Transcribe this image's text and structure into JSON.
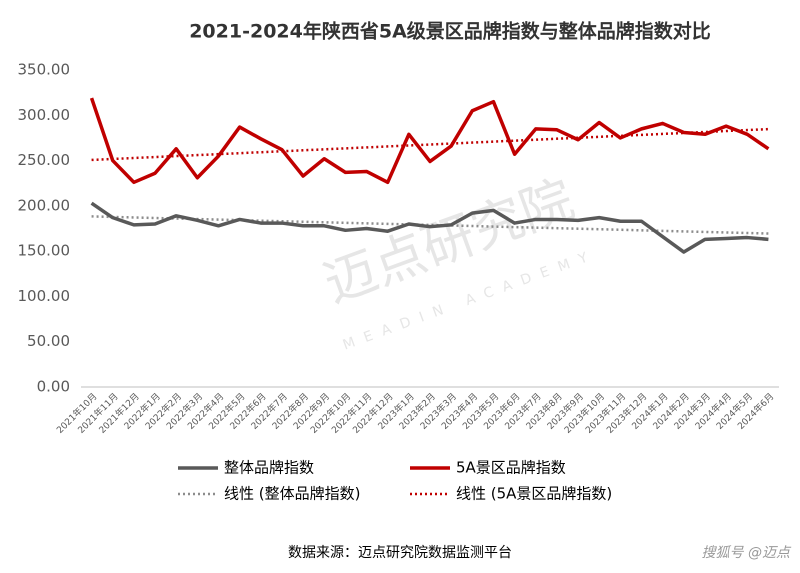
{
  "chart_data": {
    "type": "line",
    "title": "2021-2024年陕西省5A级景区品牌指数与整体品牌指数对比",
    "categories": [
      "2021年10月",
      "2021年11月",
      "2021年12月",
      "2022年1月",
      "2022年2月",
      "2022年3月",
      "2022年4月",
      "2022年5月",
      "2022年6月",
      "2022年7月",
      "2022年8月",
      "2022年9月",
      "2022年10月",
      "2022年11月",
      "2022年12月",
      "2023年1月",
      "2023年2月",
      "2023年3月",
      "2023年4月",
      "2023年5月",
      "2023年6月",
      "2023年7月",
      "2023年8月",
      "2023年9月",
      "2023年10月",
      "2023年11月",
      "2023年12月",
      "2024年1月",
      "2024年2月",
      "2024年3月",
      "2024年4月",
      "2024年5月",
      "2024年6月"
    ],
    "series": [
      {
        "name": "整体品牌指数",
        "color": "#595959",
        "values": [
          203,
          187,
          179,
          180,
          189,
          184,
          178,
          185,
          181,
          181,
          178,
          178,
          173,
          175,
          172,
          180,
          177,
          179,
          192,
          195,
          181,
          185,
          185,
          184,
          187,
          183,
          183,
          166,
          149,
          163,
          164,
          165,
          163
        ],
        "trendline": {
          "name": "线性 (整体品牌指数)",
          "color": "#8c8c8c"
        }
      },
      {
        "name": "5A景区品牌指数",
        "color": "#c00000",
        "values": [
          319,
          250,
          226,
          236,
          263,
          231,
          255,
          287,
          274,
          262,
          233,
          252,
          237,
          238,
          226,
          279,
          249,
          266,
          305,
          315,
          257,
          285,
          284,
          273,
          292,
          275,
          285,
          291,
          281,
          279,
          288,
          279,
          263
        ],
        "trendline": {
          "name": "线性 (5A景区品牌指数)",
          "color": "#c00000"
        }
      }
    ],
    "ylim": [
      0,
      350
    ],
    "yticks": [
      {
        "value": 0,
        "label": "0.00"
      },
      {
        "value": 50,
        "label": "50.00"
      },
      {
        "value": 100,
        "label": "100.00"
      },
      {
        "value": 150,
        "label": "150.00"
      },
      {
        "value": 200,
        "label": "200.00"
      },
      {
        "value": 250,
        "label": "250.00"
      },
      {
        "value": 300,
        "label": "300.00"
      },
      {
        "value": 350,
        "label": "350.00"
      }
    ],
    "grid": false,
    "source": "数据来源：迈点研究院数据监测平台",
    "watermark": "迈点研究院",
    "watermark_en": "MEADIN ACADEMY",
    "credit": "搜狐号 @迈点"
  }
}
